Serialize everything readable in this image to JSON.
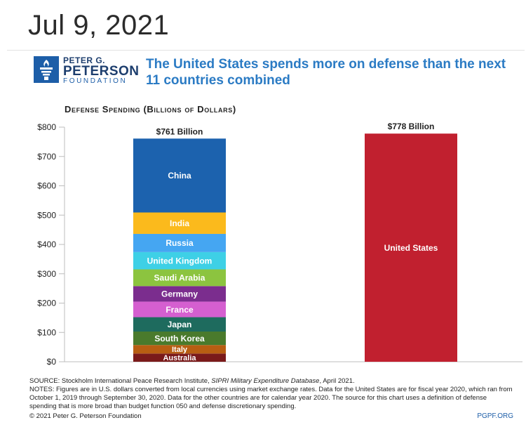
{
  "date": "Jul 9, 2021",
  "logo": {
    "line1": "PETER G.",
    "line2": "PETERSON",
    "line3": "FOUNDATION"
  },
  "headline": "The United States spends more on defense than the next 11 countries combined",
  "chart_title": "Defense Spending (Billions of Dollars)",
  "chart_data": {
    "type": "bar",
    "stacked": true,
    "title": "Defense Spending (Billions of Dollars)",
    "ylim": [
      0,
      800
    ],
    "yticks": [
      "$0",
      "$100",
      "$200",
      "$300",
      "$400",
      "$500",
      "$600",
      "$700",
      "$800"
    ],
    "ytick_values": [
      0,
      100,
      200,
      300,
      400,
      500,
      600,
      700,
      800
    ],
    "bars": [
      {
        "name": "next-11",
        "total_label": "$761 Billion",
        "total": 761,
        "segments": [
          {
            "label": "Australia",
            "value": 28,
            "color": "#7a1a1a"
          },
          {
            "label": "Italy",
            "value": 29,
            "color": "#b85e12"
          },
          {
            "label": "South Korea",
            "value": 46,
            "color": "#4a7a2c"
          },
          {
            "label": "Japan",
            "value": 49,
            "color": "#1e6b5e"
          },
          {
            "label": "France",
            "value": 53,
            "color": "#d55fd0"
          },
          {
            "label": "Germany",
            "value": 53,
            "color": "#7b2d8e"
          },
          {
            "label": "Saudi Arabia",
            "value": 57,
            "color": "#8cc43f"
          },
          {
            "label": "United Kingdom",
            "value": 59,
            "color": "#3ed0e6"
          },
          {
            "label": "Russia",
            "value": 62,
            "color": "#45a6f2"
          },
          {
            "label": "India",
            "value": 73,
            "color": "#fbba1c"
          },
          {
            "label": "China",
            "value": 252,
            "color": "#1c62ae"
          }
        ]
      },
      {
        "name": "us",
        "total_label": "$778 Billion",
        "total": 778,
        "segments": [
          {
            "label": "United States",
            "value": 778,
            "color": "#c1202f"
          }
        ]
      }
    ]
  },
  "notes": {
    "source_prefix": "SOURCE: Stockholm International Peace Research Institute, ",
    "source_italic": "SIPRI Military Expenditure Database",
    "source_suffix": ", April 2021.",
    "notes_text": "NOTES: Figures are in U.S. dollars converted from local currencies using market exchange rates. Data for the United States are for fiscal year 2020, which ran from October 1, 2019 through September 30, 2020. Data for the other countries are for calendar year 2020. The source for this chart uses a definition of defense spending that is more broad than budget function 050 and defense discretionary spending."
  },
  "copyright": "© 2021 Peter G. Peterson Foundation",
  "site": "PGPF.ORG"
}
